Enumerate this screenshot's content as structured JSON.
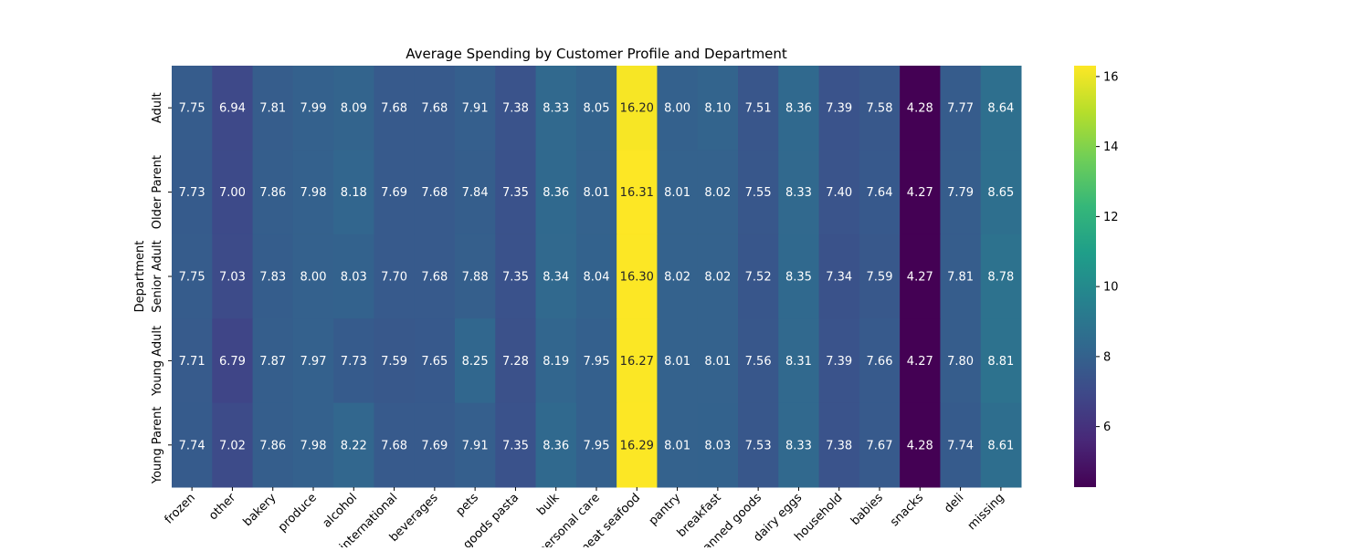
{
  "chart_data": {
    "type": "heatmap",
    "title": "Average Spending by Customer Profile and Department",
    "xlabel": "",
    "ylabel": "Department",
    "x_categories": [
      "frozen",
      "other",
      "bakery",
      "produce",
      "alcohol",
      "international",
      "beverages",
      "pets",
      "dry goods pasta",
      "bulk",
      "personal care",
      "meat seafood",
      "pantry",
      "breakfast",
      "canned goods",
      "dairy eggs",
      "household",
      "babies",
      "snacks",
      "deli",
      "missing"
    ],
    "y_categories": [
      "Adult",
      "Older Parent",
      "Senior Adult",
      "Young Adult",
      "Young Parent"
    ],
    "values": [
      [
        7.75,
        6.94,
        7.81,
        7.99,
        8.09,
        7.68,
        7.68,
        7.91,
        7.38,
        8.33,
        8.05,
        16.2,
        8.0,
        8.1,
        7.51,
        8.36,
        7.39,
        7.58,
        4.28,
        7.77,
        8.64
      ],
      [
        7.73,
        7.0,
        7.86,
        7.98,
        8.18,
        7.69,
        7.68,
        7.84,
        7.35,
        8.36,
        8.01,
        16.31,
        8.01,
        8.02,
        7.55,
        8.33,
        7.4,
        7.64,
        4.27,
        7.79,
        8.65
      ],
      [
        7.75,
        7.03,
        7.83,
        8.0,
        8.03,
        7.7,
        7.68,
        7.88,
        7.35,
        8.34,
        8.04,
        16.3,
        8.02,
        8.02,
        7.52,
        8.35,
        7.34,
        7.59,
        4.27,
        7.81,
        8.78
      ],
      [
        7.71,
        6.79,
        7.87,
        7.97,
        7.73,
        7.59,
        7.65,
        8.25,
        7.28,
        8.19,
        7.95,
        16.27,
        8.01,
        8.01,
        7.56,
        8.31,
        7.39,
        7.66,
        4.27,
        7.8,
        8.81
      ],
      [
        7.74,
        7.02,
        7.86,
        7.98,
        8.22,
        7.68,
        7.69,
        7.91,
        7.35,
        8.36,
        7.95,
        16.29,
        8.01,
        8.03,
        7.53,
        8.33,
        7.38,
        7.67,
        4.28,
        7.74,
        8.61
      ]
    ],
    "value_format": "2 decimals",
    "colormap": "viridis",
    "colorbar_range": [
      4.27,
      16.31
    ],
    "colorbar_ticks": [
      6,
      8,
      10,
      12,
      14,
      16
    ],
    "colors": {
      "annotation_light": "#ffffff",
      "annotation_dark": "#262626"
    }
  }
}
